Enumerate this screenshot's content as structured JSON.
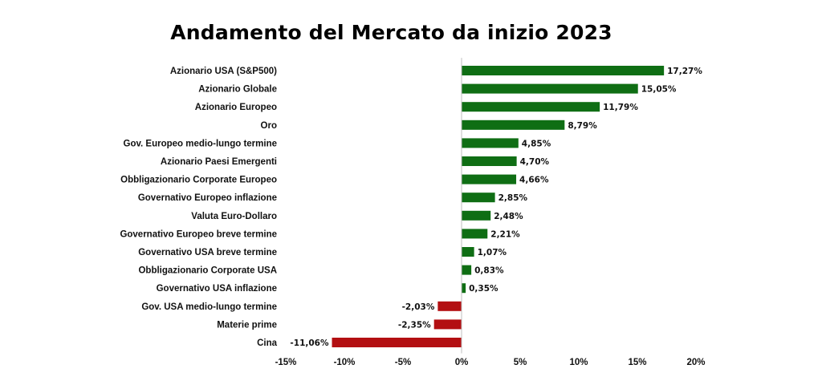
{
  "chart_data": {
    "type": "bar",
    "orientation": "horizontal",
    "title": "Andamento del Mercato da inizio 2023",
    "xlabel": "",
    "ylabel": "",
    "xlim": [
      -15,
      20
    ],
    "grid": false,
    "categories": [
      "Azionario USA (S&P500)",
      "Azionario Globale",
      "Azionario Europeo",
      "Oro",
      "Gov. Europeo medio-lungo termine",
      "Azionario Paesi Emergenti",
      "Obbligazionario Corporate Europeo",
      "Governativo Europeo inflazione",
      "Valuta Euro-Dollaro",
      "Governativo Europeo breve termine",
      "Governativo USA breve termine",
      "Obbligazionario Corporate USA",
      "Governativo USA inflazione",
      "Gov. USA medio-lungo termine",
      "Materie prime",
      "Cina"
    ],
    "values": [
      17.27,
      15.05,
      11.79,
      8.79,
      4.85,
      4.7,
      4.66,
      2.85,
      2.48,
      2.21,
      1.07,
      0.83,
      0.35,
      -2.03,
      -2.35,
      -11.06
    ],
    "value_labels": [
      "17,27%",
      "15,05%",
      "11,79%",
      "8,79%",
      "4,85%",
      "4,70%",
      "4,66%",
      "2,85%",
      "2,48%",
      "2,21%",
      "1,07%",
      "0,83%",
      "0,35%",
      "-2,03%",
      "-2,35%",
      "-11,06%"
    ],
    "ticks": [
      -15,
      -10,
      -5,
      0,
      5,
      10,
      15,
      20
    ],
    "tick_labels": [
      "-15%",
      "-10%",
      "-5%",
      "0%",
      "5%",
      "10%",
      "15%",
      "20%"
    ],
    "colors": {
      "positive": "#0f6e14",
      "negative": "#b30f12",
      "axis": "#bfbfbf"
    }
  }
}
